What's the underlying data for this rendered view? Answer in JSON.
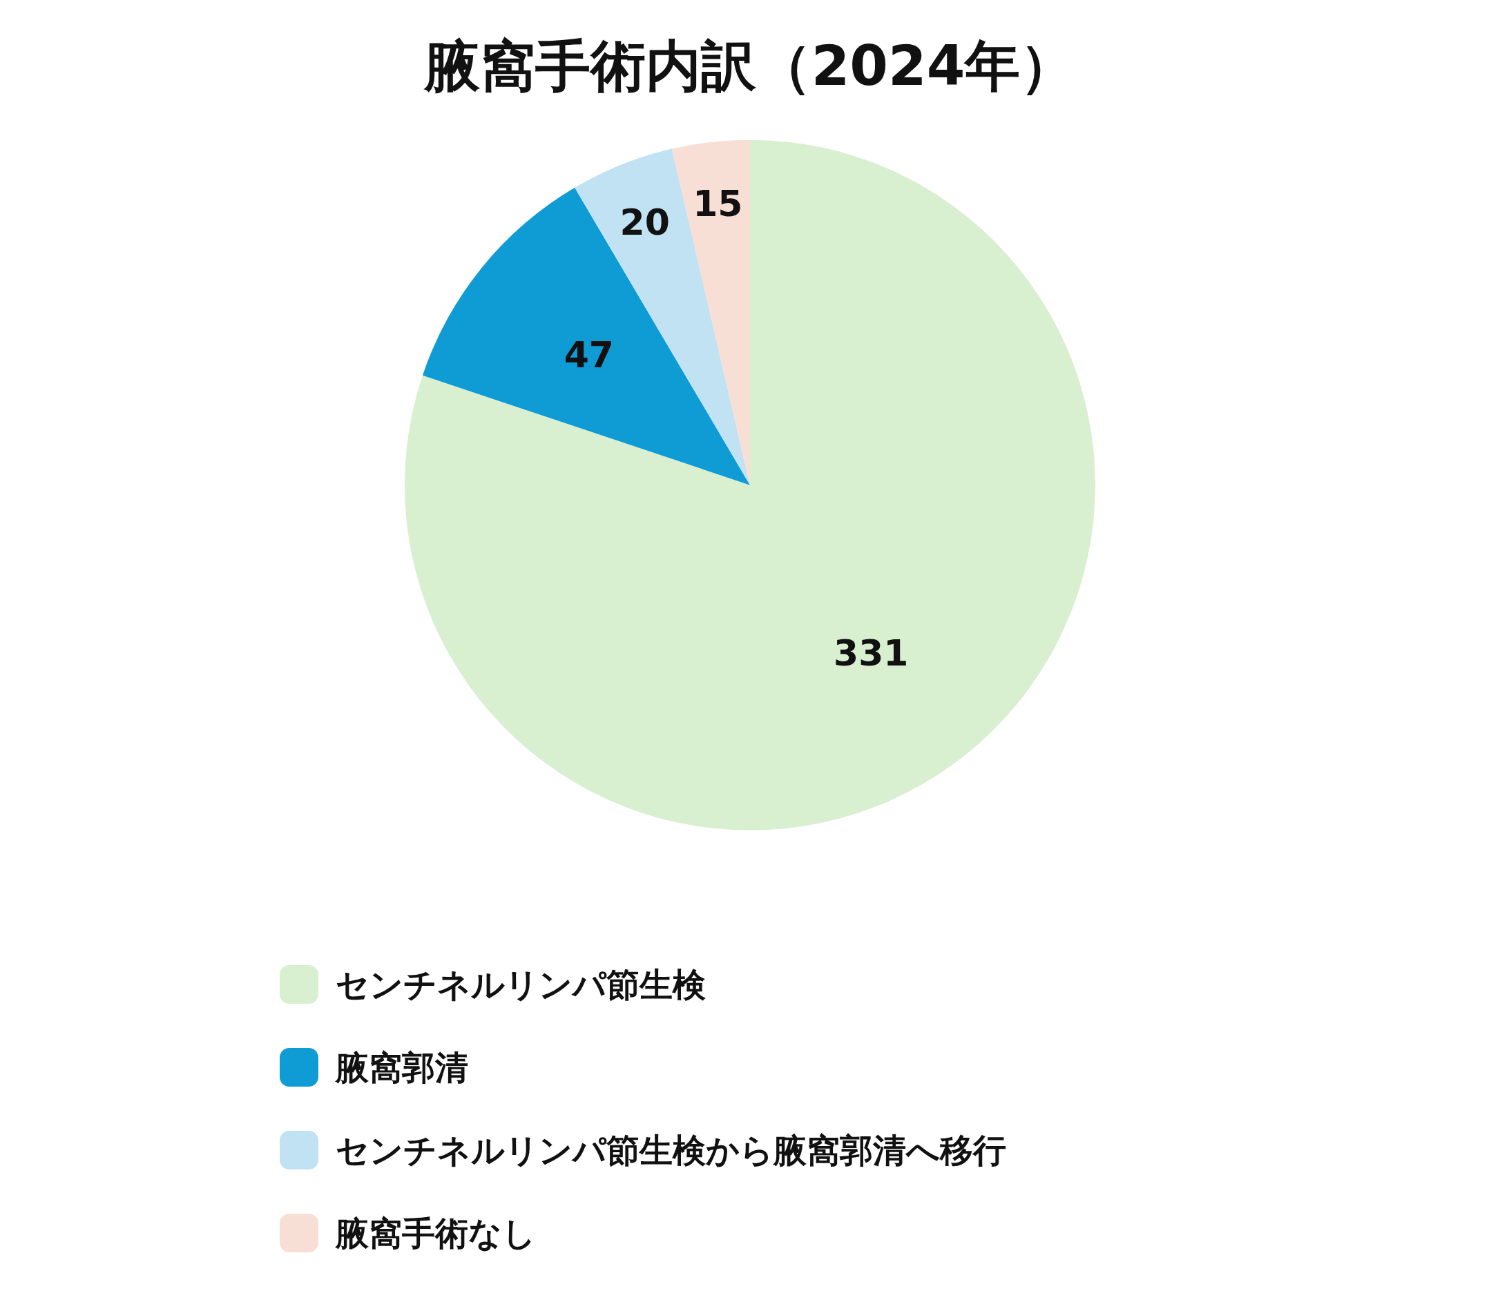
{
  "chart_data": {
    "type": "pie",
    "title": "腋窩手術内訳（2024年）",
    "categories": [
      "センチネルリンパ節生検",
      "腋窩郭清",
      "センチネルリンパ節生検から腋窩郭清へ移行",
      "腋窩手術なし"
    ],
    "values": [
      331,
      47,
      20,
      15
    ],
    "colors": [
      "#d8efd0",
      "#0f9bd4",
      "#c0e2f2",
      "#f8dfd6"
    ],
    "data_labels": true,
    "legend": "bottom"
  }
}
